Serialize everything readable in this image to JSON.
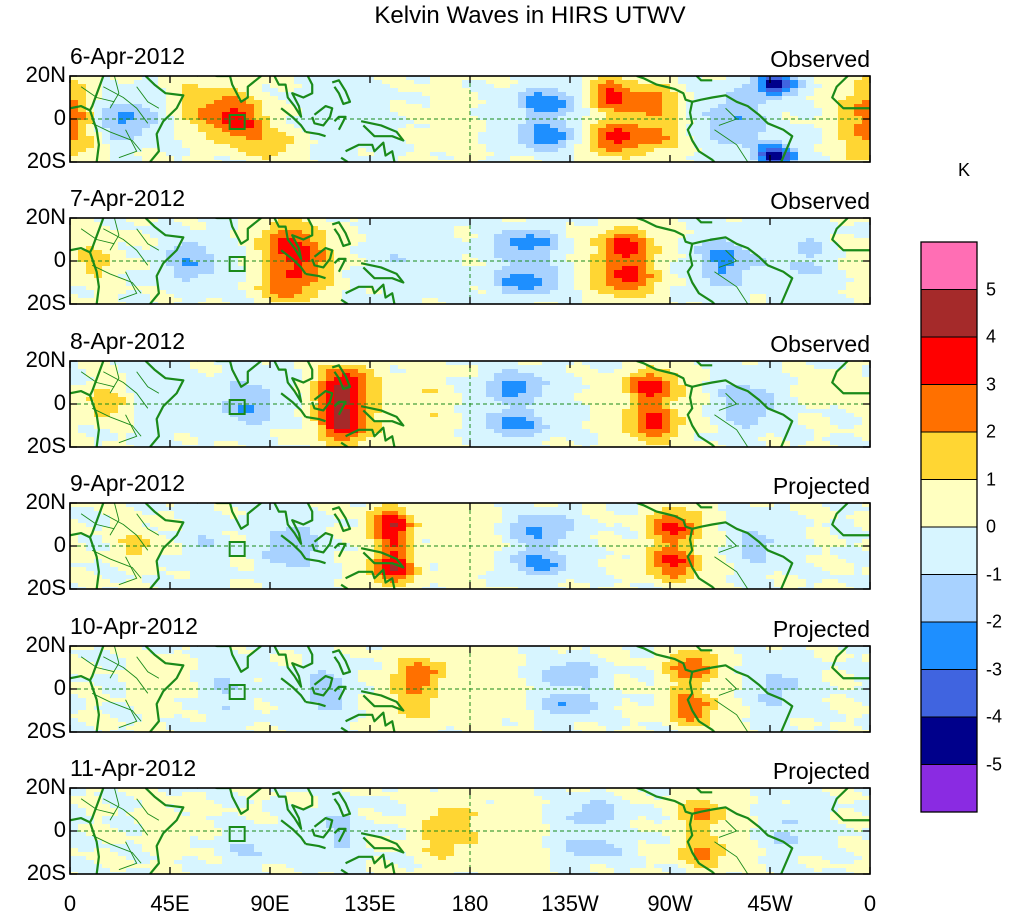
{
  "title": "Kelvin Waves in HIRS UTWV",
  "panels": [
    {
      "date": "6-Apr-2012",
      "kind": "Observed"
    },
    {
      "date": "7-Apr-2012",
      "kind": "Observed"
    },
    {
      "date": "8-Apr-2012",
      "kind": "Observed"
    },
    {
      "date": "9-Apr-2012",
      "kind": "Projected"
    },
    {
      "date": "10-Apr-2012",
      "kind": "Projected"
    },
    {
      "date": "11-Apr-2012",
      "kind": "Projected"
    }
  ],
  "y_tick_labels": [
    "20N",
    "0",
    "20S"
  ],
  "x_tick_labels": [
    "0",
    "45E",
    "90E",
    "135E",
    "180",
    "135W",
    "90W",
    "45W",
    "0"
  ],
  "colorbar": {
    "unit": "K",
    "labels": [
      "5",
      "4",
      "3",
      "2",
      "1",
      "0",
      "-1",
      "-2",
      "-3",
      "-4",
      "-5"
    ],
    "colors": [
      "#ff6eb4",
      "#a52a2a",
      "#ff0000",
      "#ff7000",
      "#ffd633",
      "#ffffc0",
      "#d7f5ff",
      "#a8d2ff",
      "#1e8fff",
      "#4064e0",
      "#00008b",
      "#8a2be2"
    ]
  },
  "chart_data": {
    "type": "heatmap",
    "title": "Kelvin Waves in HIRS UTWV",
    "variable": "HIRS UTWV anomaly",
    "unit": "K",
    "x_range_deg": [
      0,
      360
    ],
    "y_range_deg": [
      -20,
      20
    ],
    "levels": [
      -5,
      -4,
      -3,
      -2,
      -1,
      0,
      1,
      2,
      3,
      4,
      5
    ],
    "panels": [
      {
        "date": "6-Apr-2012",
        "kind": "Observed",
        "blobs": [
          {
            "lon": 75,
            "lat": 0,
            "dlon": 14,
            "dlat": 11,
            "amp": 3.4
          },
          {
            "lon": 58,
            "lat": 8,
            "dlon": 12,
            "dlat": 11,
            "amp": 1.5
          },
          {
            "lon": 92,
            "lat": -12,
            "dlon": 12,
            "dlat": 7,
            "amp": 1.8
          },
          {
            "lon": 25,
            "lat": 0,
            "dlon": 14,
            "dlat": 10,
            "amp": -2.3
          },
          {
            "lon": 0,
            "lat": 0,
            "dlon": 13,
            "dlat": 20,
            "amp": 1.3
          },
          {
            "lon": 358,
            "lat": 0,
            "dlon": 13,
            "dlat": 20,
            "amp": 1.3
          },
          {
            "lon": 215,
            "lat": 8,
            "dlon": 15,
            "dlat": 7,
            "amp": -2.7
          },
          {
            "lon": 215,
            "lat": -8,
            "dlon": 15,
            "dlat": 7,
            "amp": -2.7
          },
          {
            "lon": 243,
            "lat": 11,
            "dlon": 11,
            "dlat": 8,
            "amp": 3.3
          },
          {
            "lon": 243,
            "lat": -9,
            "dlon": 11,
            "dlat": 8,
            "amp": 3.3
          },
          {
            "lon": 262,
            "lat": 8,
            "dlon": 11,
            "dlat": 8,
            "amp": 2.6
          },
          {
            "lon": 262,
            "lat": -8,
            "dlon": 11,
            "dlat": 8,
            "amp": 2.6
          },
          {
            "lon": 300,
            "lat": 0,
            "dlon": 15,
            "dlat": 14,
            "amp": -1.9
          },
          {
            "lon": 318,
            "lat": 16,
            "dlon": 9,
            "dlat": 5,
            "amp": -4.8
          },
          {
            "lon": 318,
            "lat": -17,
            "dlon": 9,
            "dlat": 5,
            "amp": -4.8
          },
          {
            "lon": 170,
            "lat": 0,
            "dlon": 12,
            "dlat": 20,
            "amp": 0.6
          },
          {
            "lon": 120,
            "lat": 0,
            "dlon": 25,
            "dlat": 20,
            "amp": -0.6
          }
        ]
      },
      {
        "date": "7-Apr-2012",
        "kind": "Observed",
        "blobs": [
          {
            "lon": 105,
            "lat": 0,
            "dlon": 14,
            "dlat": 16,
            "amp": 2.8
          },
          {
            "lon": 95,
            "lat": 8,
            "dlon": 10,
            "dlat": 10,
            "amp": 2.0
          },
          {
            "lon": 95,
            "lat": -12,
            "dlon": 10,
            "dlat": 7,
            "amp": 2.0
          },
          {
            "lon": 55,
            "lat": 0,
            "dlon": 14,
            "dlat": 11,
            "amp": -1.9
          },
          {
            "lon": 10,
            "lat": 0,
            "dlon": 12,
            "dlat": 11,
            "amp": 1.3
          },
          {
            "lon": 150,
            "lat": 0,
            "dlon": 20,
            "dlat": 20,
            "amp": -0.8
          },
          {
            "lon": 205,
            "lat": 8,
            "dlon": 15,
            "dlat": 7,
            "amp": -2.6
          },
          {
            "lon": 205,
            "lat": -9,
            "dlon": 15,
            "dlat": 7,
            "amp": -2.6
          },
          {
            "lon": 250,
            "lat": 7,
            "dlon": 14,
            "dlat": 8,
            "amp": 3.4
          },
          {
            "lon": 250,
            "lat": -8,
            "dlon": 14,
            "dlat": 8,
            "amp": 3.4
          },
          {
            "lon": 295,
            "lat": 0,
            "dlon": 15,
            "dlat": 13,
            "amp": -2.2
          },
          {
            "lon": 330,
            "lat": 0,
            "dlon": 12,
            "dlat": 20,
            "amp": -1.2
          }
        ]
      },
      {
        "date": "8-Apr-2012",
        "kind": "Observed",
        "blobs": [
          {
            "lon": 125,
            "lat": 8,
            "dlon": 12,
            "dlat": 9,
            "amp": 3.2
          },
          {
            "lon": 125,
            "lat": -9,
            "dlon": 12,
            "dlat": 9,
            "amp": 3.2
          },
          {
            "lon": 120,
            "lat": 0,
            "dlon": 10,
            "dlat": 18,
            "amp": 1.8
          },
          {
            "lon": 80,
            "lat": 0,
            "dlon": 14,
            "dlat": 11,
            "amp": -2.0
          },
          {
            "lon": 15,
            "lat": 0,
            "dlon": 12,
            "dlat": 8,
            "amp": 1.6
          },
          {
            "lon": 40,
            "lat": 0,
            "dlon": 10,
            "dlat": 20,
            "amp": -0.8
          },
          {
            "lon": 200,
            "lat": 8,
            "dlon": 16,
            "dlat": 7,
            "amp": -2.4
          },
          {
            "lon": 200,
            "lat": -9,
            "dlon": 16,
            "dlat": 7,
            "amp": -2.4
          },
          {
            "lon": 262,
            "lat": 8,
            "dlon": 13,
            "dlat": 8,
            "amp": 3.4
          },
          {
            "lon": 262,
            "lat": -9,
            "dlon": 13,
            "dlat": 8,
            "amp": 3.4
          },
          {
            "lon": 305,
            "lat": 0,
            "dlon": 13,
            "dlat": 12,
            "amp": -2.0
          },
          {
            "lon": 340,
            "lat": 8,
            "dlon": 10,
            "dlat": 6,
            "amp": 1.0
          },
          {
            "lon": 160,
            "lat": 0,
            "dlon": 15,
            "dlat": 20,
            "amp": 0.8
          }
        ]
      },
      {
        "date": "9-Apr-2012",
        "kind": "Projected",
        "blobs": [
          {
            "lon": 145,
            "lat": 10,
            "dlon": 11,
            "dlat": 8,
            "amp": 2.8
          },
          {
            "lon": 145,
            "lat": -10,
            "dlon": 11,
            "dlat": 8,
            "amp": 2.8
          },
          {
            "lon": 145,
            "lat": 0,
            "dlon": 8,
            "dlat": 18,
            "amp": 1.5
          },
          {
            "lon": 100,
            "lat": 0,
            "dlon": 13,
            "dlat": 12,
            "amp": -1.9
          },
          {
            "lon": 30,
            "lat": 0,
            "dlon": 10,
            "dlat": 8,
            "amp": 1.3
          },
          {
            "lon": 60,
            "lat": 0,
            "dlon": 10,
            "dlat": 20,
            "amp": -0.8
          },
          {
            "lon": 212,
            "lat": 8,
            "dlon": 15,
            "dlat": 7,
            "amp": -2.3
          },
          {
            "lon": 212,
            "lat": -8,
            "dlon": 15,
            "dlat": 7,
            "amp": -2.3
          },
          {
            "lon": 272,
            "lat": 9,
            "dlon": 12,
            "dlat": 8,
            "amp": 3.3
          },
          {
            "lon": 272,
            "lat": -8,
            "dlon": 12,
            "dlat": 8,
            "amp": 3.3
          },
          {
            "lon": 310,
            "lat": 0,
            "dlon": 12,
            "dlat": 11,
            "amp": -1.3
          },
          {
            "lon": 180,
            "lat": 0,
            "dlon": 12,
            "dlat": 20,
            "amp": 0.7
          }
        ]
      },
      {
        "date": "10-Apr-2012",
        "kind": "Projected",
        "blobs": [
          {
            "lon": 155,
            "lat": 0,
            "dlon": 14,
            "dlat": 16,
            "amp": 1.8
          },
          {
            "lon": 160,
            "lat": 8,
            "dlon": 9,
            "dlat": 6,
            "amp": 1.4
          },
          {
            "lon": 115,
            "lat": 0,
            "dlon": 12,
            "dlat": 12,
            "amp": -1.6
          },
          {
            "lon": 40,
            "lat": 0,
            "dlon": 10,
            "dlat": 10,
            "amp": 0.9
          },
          {
            "lon": 70,
            "lat": 0,
            "dlon": 12,
            "dlat": 20,
            "amp": -0.9
          },
          {
            "lon": 225,
            "lat": 7,
            "dlon": 14,
            "dlat": 6,
            "amp": -2.0
          },
          {
            "lon": 225,
            "lat": -7,
            "dlon": 14,
            "dlat": 6,
            "amp": -2.0
          },
          {
            "lon": 280,
            "lat": 10,
            "dlon": 11,
            "dlat": 8,
            "amp": 3.0
          },
          {
            "lon": 280,
            "lat": -9,
            "dlon": 11,
            "dlat": 8,
            "amp": 3.0
          },
          {
            "lon": 320,
            "lat": 0,
            "dlon": 12,
            "dlat": 11,
            "amp": -1.4
          },
          {
            "lon": 190,
            "lat": 0,
            "dlon": 12,
            "dlat": 20,
            "amp": 0.6
          }
        ]
      },
      {
        "date": "11-Apr-2012",
        "kind": "Projected",
        "blobs": [
          {
            "lon": 170,
            "lat": 0,
            "dlon": 14,
            "dlat": 15,
            "amp": 1.7
          },
          {
            "lon": 120,
            "lat": 0,
            "dlon": 12,
            "dlat": 12,
            "amp": -1.2
          },
          {
            "lon": 45,
            "lat": 0,
            "dlon": 10,
            "dlat": 10,
            "amp": 0.8
          },
          {
            "lon": 80,
            "lat": -8,
            "dlon": 12,
            "dlat": 8,
            "amp": -1.1
          },
          {
            "lon": 235,
            "lat": 8,
            "dlon": 14,
            "dlat": 6,
            "amp": -1.8
          },
          {
            "lon": 235,
            "lat": -8,
            "dlon": 14,
            "dlat": 6,
            "amp": -1.8
          },
          {
            "lon": 285,
            "lat": 8,
            "dlon": 12,
            "dlat": 8,
            "amp": 2.2
          },
          {
            "lon": 285,
            "lat": -10,
            "dlon": 12,
            "dlat": 7,
            "amp": 2.2
          },
          {
            "lon": 325,
            "lat": 0,
            "dlon": 12,
            "dlat": 11,
            "amp": -1.2
          },
          {
            "lon": 200,
            "lat": 0,
            "dlon": 12,
            "dlat": 20,
            "amp": 0.6
          }
        ]
      }
    ]
  }
}
